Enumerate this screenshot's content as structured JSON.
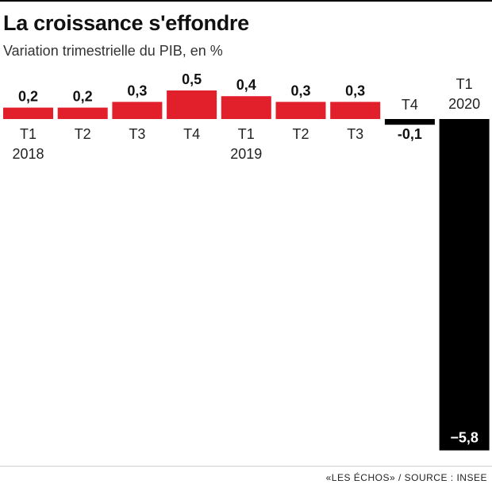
{
  "header": {
    "title": "La croissance s'effondre",
    "subtitle": "Variation trimestrielle du PIB, en %"
  },
  "footer": {
    "source": "«LES ÉCHOS» / SOURCE : INSEE"
  },
  "colors": {
    "positive": "#e2202c",
    "negative": "#000000"
  },
  "chart_data": {
    "type": "bar",
    "title": "La croissance s'effondre",
    "subtitle": "Variation trimestrielle du PIB, en %",
    "categories": [
      "T1 2018",
      "T2 2018",
      "T3 2018",
      "T4 2018",
      "T1 2019",
      "T2 2019",
      "T3 2019",
      "T4 2019",
      "T1 2020"
    ],
    "tick_labels": [
      [
        "T1",
        "2018"
      ],
      [
        "T2"
      ],
      [
        "T3"
      ],
      [
        "T4"
      ],
      [
        "T1",
        "2019"
      ],
      [
        "T2"
      ],
      [
        "T3"
      ],
      [
        "T4"
      ],
      [
        "T1",
        "2020"
      ]
    ],
    "values": [
      0.2,
      0.2,
      0.3,
      0.5,
      0.4,
      0.3,
      0.3,
      -0.1,
      -5.8
    ],
    "value_labels": [
      "0,2",
      "0,2",
      "0,3",
      "0,5",
      "0,4",
      "0,3",
      "0,3",
      "-0,1",
      "−5,8"
    ],
    "xlabel": "",
    "ylabel": "",
    "ylim": [
      -5.8,
      0.5
    ],
    "grid": false,
    "legend": "none"
  }
}
